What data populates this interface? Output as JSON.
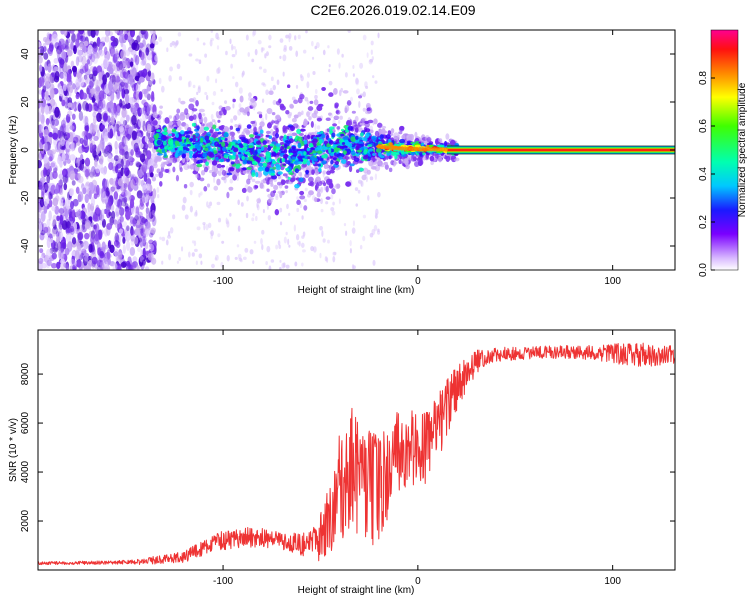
{
  "title": "C2E6.2026.019.02.14.E09",
  "colors": {
    "line": "#ee3333",
    "frame": "#000000",
    "spectro_light": "#c8a8f0",
    "spectro_mid": "#8844ee",
    "spectro_dark": "#4400cc"
  },
  "chart_data": [
    {
      "type": "heatmap",
      "title": "",
      "xlabel": "Height of straight line (km)",
      "ylabel": "Frequency (Hz)",
      "xlim": [
        -195,
        132
      ],
      "ylim": [
        -50,
        50
      ],
      "xticks": [
        -100,
        0,
        100
      ],
      "yticks": [
        -40,
        -20,
        0,
        20,
        40
      ],
      "xtick_labels": [
        "-100",
        "0",
        "100"
      ],
      "ytick_labels": [
        "-40",
        "-20",
        "0",
        "20",
        "40"
      ],
      "colorbar": {
        "label": "Normalized spectral amplitude",
        "range": [
          0,
          1
        ],
        "ticks": [
          0,
          0.2,
          0.4,
          0.6,
          0.8
        ],
        "tick_labels": [
          "0.0",
          "0.2",
          "0.4",
          "0.6",
          "0.8"
        ]
      },
      "features": {
        "noise_region_x": [
          -195,
          -135
        ],
        "scatter_region_x": [
          -135,
          -20
        ],
        "band_center_points": [
          [
            -135,
            4
          ],
          [
            -120,
            3
          ],
          [
            -105,
            1
          ],
          [
            -95,
            0
          ],
          [
            -85,
            -1
          ],
          [
            -75,
            -3
          ],
          [
            -65,
            -2
          ],
          [
            -55,
            0
          ],
          [
            -45,
            2
          ],
          [
            -35,
            3
          ],
          [
            -25,
            2
          ],
          [
            -15,
            1
          ],
          [
            -5,
            0.5
          ],
          [
            5,
            0.3
          ],
          [
            15,
            0.2
          ],
          [
            30,
            0
          ],
          [
            60,
            0
          ],
          [
            90,
            0
          ],
          [
            132,
            0
          ]
        ],
        "band_halfwidth_points": [
          [
            -135,
            5
          ],
          [
            -100,
            6
          ],
          [
            -60,
            8
          ],
          [
            -30,
            6
          ],
          [
            -15,
            3
          ],
          [
            0,
            2
          ],
          [
            15,
            1.5
          ],
          [
            132,
            1.5
          ]
        ],
        "strong_band_x": [
          15,
          132
        ]
      }
    },
    {
      "type": "line",
      "title": "",
      "xlabel": "Height of straight line (km)",
      "ylabel": "SNR (10 * v/v)",
      "xlim": [
        -195,
        132
      ],
      "ylim": [
        0,
        9800
      ],
      "xticks": [
        -100,
        0,
        100
      ],
      "yticks": [
        2000,
        4000,
        6000,
        8000
      ],
      "xtick_labels": [
        "-100",
        "0",
        "100"
      ],
      "ytick_labels": [
        "2000",
        "4000",
        "6000",
        "8000"
      ],
      "series": [
        {
          "name": "SNR",
          "envelope_mean": [
            [
              -195,
              280
            ],
            [
              -160,
              300
            ],
            [
              -140,
              350
            ],
            [
              -120,
              550
            ],
            [
              -110,
              900
            ],
            [
              -100,
              1200
            ],
            [
              -90,
              1350
            ],
            [
              -80,
              1300
            ],
            [
              -70,
              1200
            ],
            [
              -60,
              1000
            ],
            [
              -50,
              1300
            ],
            [
              -45,
              2200
            ],
            [
              -40,
              3300
            ],
            [
              -35,
              4200
            ],
            [
              -30,
              3900
            ],
            [
              -25,
              3400
            ],
            [
              -20,
              3300
            ],
            [
              -15,
              4000
            ],
            [
              -10,
              5000
            ],
            [
              -5,
              5200
            ],
            [
              0,
              4800
            ],
            [
              5,
              5000
            ],
            [
              10,
              5800
            ],
            [
              15,
              6600
            ],
            [
              20,
              7400
            ],
            [
              25,
              8000
            ],
            [
              30,
              8500
            ],
            [
              40,
              8800
            ],
            [
              60,
              8880
            ],
            [
              80,
              8900
            ],
            [
              100,
              8850
            ],
            [
              110,
              8800
            ],
            [
              120,
              8750
            ],
            [
              132,
              8800
            ]
          ],
          "envelope_amplitude": [
            [
              -195,
              60
            ],
            [
              -150,
              80
            ],
            [
              -120,
              250
            ],
            [
              -100,
              400
            ],
            [
              -85,
              450
            ],
            [
              -70,
              400
            ],
            [
              -55,
              500
            ],
            [
              -45,
              1500
            ],
            [
              -40,
              2500
            ],
            [
              -30,
              2700
            ],
            [
              -20,
              2200
            ],
            [
              -15,
              1800
            ],
            [
              -5,
              1800
            ],
            [
              5,
              1500
            ],
            [
              15,
              1300
            ],
            [
              25,
              700
            ],
            [
              35,
              300
            ],
            [
              60,
              250
            ],
            [
              90,
              300
            ],
            [
              105,
              450
            ],
            [
              115,
              500
            ],
            [
              132,
              350
            ]
          ]
        }
      ]
    }
  ]
}
